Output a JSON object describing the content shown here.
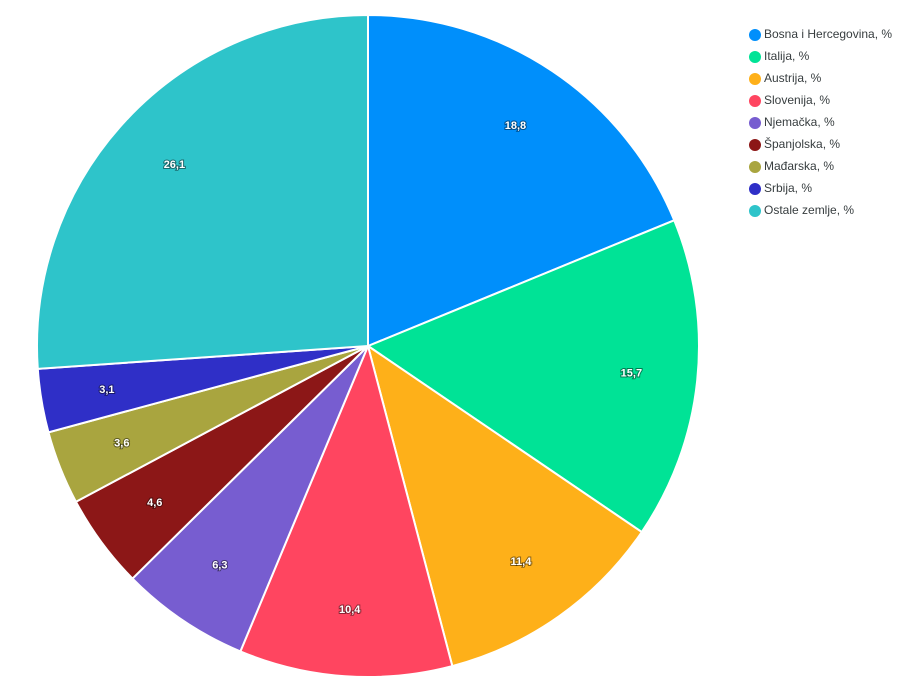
{
  "chart_data": {
    "type": "pie",
    "categories": [
      "Bosna i Hercegovina, %",
      "Italija, %",
      "Austrija, %",
      "Slovenija, %",
      "Njemačka, %",
      "Španjolska, %",
      "Mađarska, %",
      "Srbija, %",
      "Ostale zemlje, %"
    ],
    "values": [
      18.8,
      15.7,
      11.4,
      10.4,
      6.3,
      4.6,
      3.6,
      3.1,
      26.1
    ],
    "value_labels": [
      "18,8",
      "15,7",
      "11,4",
      "10,4",
      "6,3",
      "4,6",
      "3,6",
      "3,1",
      "26,1"
    ],
    "colors": [
      "#008ffb",
      "#00e396",
      "#feb019",
      "#ff4560",
      "#775dd0",
      "#8c1717",
      "#a9a53f",
      "#2f2fc7",
      "#2ec4ca"
    ],
    "legend": "top-right"
  }
}
